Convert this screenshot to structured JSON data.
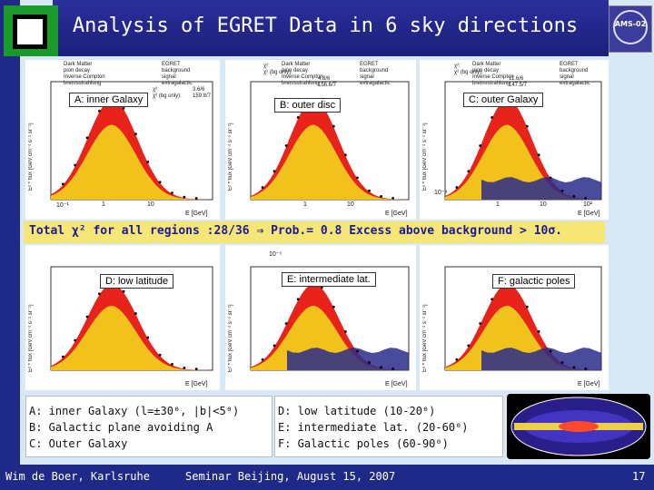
{
  "title": "Analysis of EGRET Data in 6 sky directions",
  "logo": {
    "text": "AMS-02"
  },
  "legend": {
    "left": [
      "Dark Matter",
      "pion decay",
      "Inverse Compton",
      "bremsstrahlung"
    ],
    "right": [
      "EGRET",
      "background",
      "signal",
      "extragalactic"
    ]
  },
  "panels": [
    {
      "label": "A: inner Galaxy",
      "chi": [
        "χ²:",
        "χ² (bg only):"
      ],
      "chi_vals": [
        "3.6/6",
        "159.8/7"
      ]
    },
    {
      "label": "B: outer disc",
      "chi": [
        "χ²:",
        "χ² (bg only):"
      ],
      "chi_vals": [
        "4.8/6",
        "156.6/7"
      ]
    },
    {
      "label": "C: outer Galaxy",
      "chi": [
        "χ²:",
        "χ² (bg only):"
      ],
      "chi_vals": [
        "11.6/6",
        "147.5/7"
      ]
    },
    {
      "label": "D: low latitude"
    },
    {
      "label": "E: intermediate lat."
    },
    {
      "label": "F: galactic poles"
    }
  ],
  "axes": {
    "ylabel": "E² * flux [GeV cm⁻² s⁻¹ sr⁻¹]",
    "xlabel": "E [GeV]",
    "xticks": [
      "10⁻¹",
      "1",
      "10",
      "10²"
    ],
    "yticks": [
      "10⁻⁴",
      "10⁻⁵"
    ]
  },
  "banner": "Total χ² for all regions :28/36 ⇒ Prob.= 0.8 Excess above background > 10σ.",
  "desc_left": [
    "A: inner Galaxy (l=±30⁰, |b|<5⁰)",
    "B: Galactic plane avoiding A",
    "C: Outer Galaxy"
  ],
  "desc_right": [
    "D: low latitude (10-20⁰)",
    "E: intermediate lat. (20-60⁰)",
    "F: Galactic poles (60-90⁰)"
  ],
  "footer": {
    "author": "Wim de Boer, Karlsruhe",
    "event": "Seminar Beijing, August 15, 2007",
    "page": "17"
  },
  "colors": {
    "background": "#f1c21b",
    "signal": "#e8231b",
    "extragalactic": "#2b2b8a",
    "banner": "#f5e676"
  }
}
